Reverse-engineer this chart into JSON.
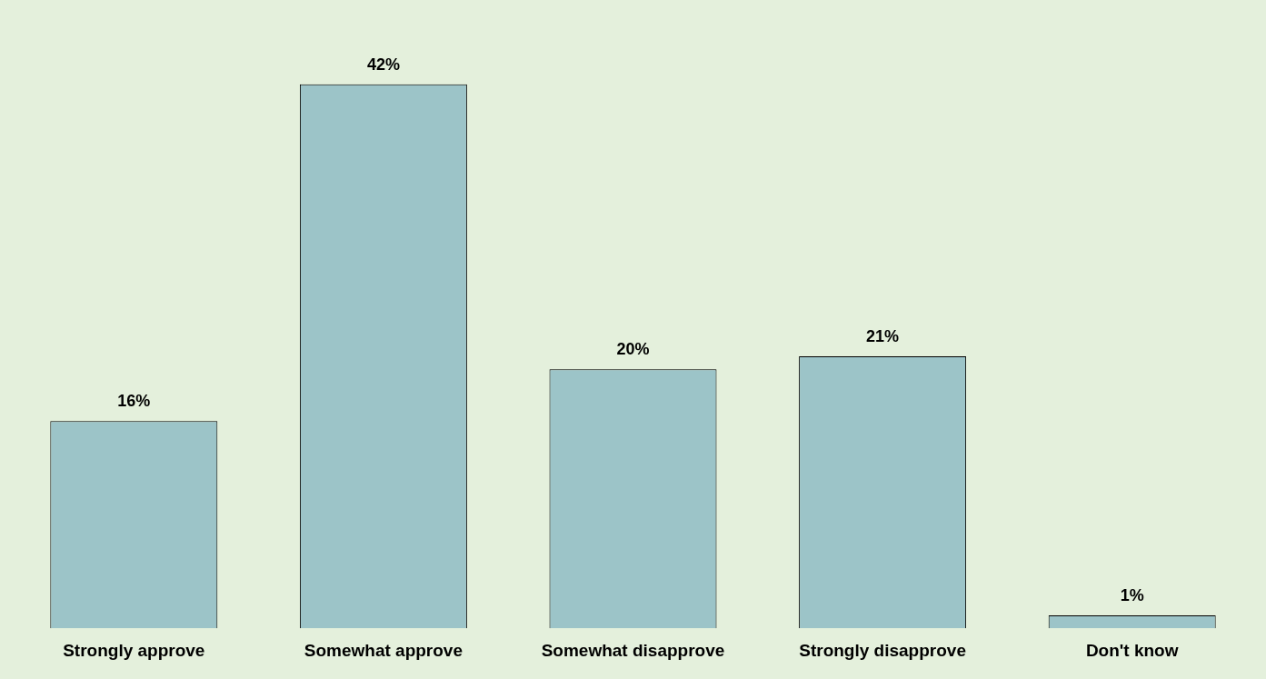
{
  "chart_data": {
    "type": "bar",
    "categories": [
      "Strongly approve",
      "Somewhat approve",
      "Somewhat disapprove",
      "Strongly disapprove",
      "Don't know"
    ],
    "values": [
      16,
      42,
      20,
      21,
      1
    ],
    "value_labels": [
      "16%",
      "42%",
      "20%",
      "21%",
      "1%"
    ],
    "color": "#9cc4c8",
    "grid": false,
    "legend": false
  }
}
